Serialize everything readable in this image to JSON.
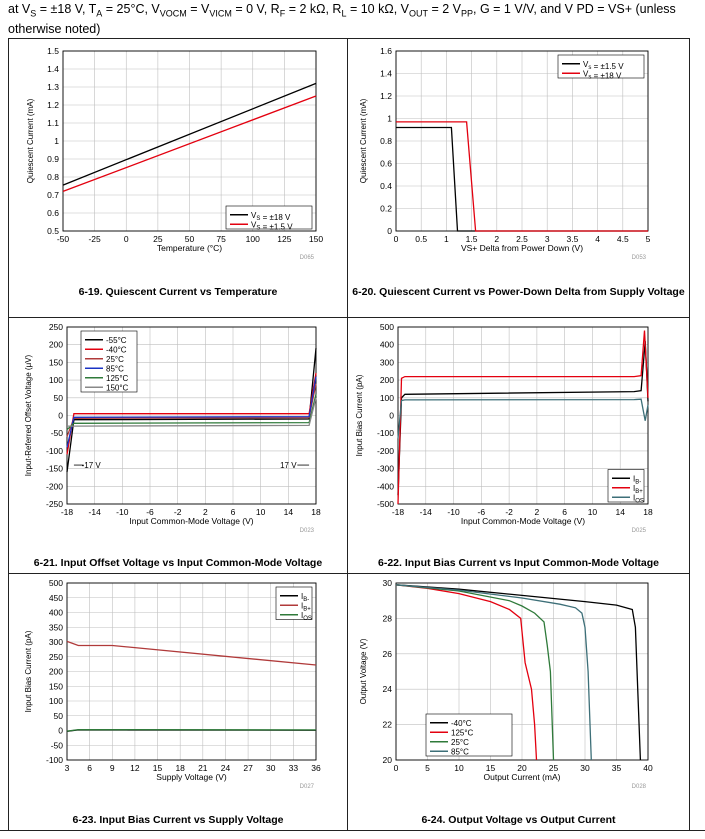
{
  "conditions": {
    "line1": "at V_S = ±18 V, T_A = 25°C, V_VOCM = V_VICM = 0 V, R_F = 2 kΩ, R_L = 10 kΩ, V_OUT = 2 V_PP, G = 1 V/V, and V PD = VS+ (unless",
    "line2": "otherwise noted)"
  },
  "colors": {
    "black": "#000000",
    "red": "#e3000f",
    "blue": "#1a33c4",
    "green": "#2f7a3a",
    "teal": "#3d6f78",
    "grid": "#bfbfbf"
  },
  "chart_data": [
    {
      "id": "fig19",
      "type": "line",
      "caption": "6-19. Quiescent Current vs Temperature",
      "code": "D065",
      "xlabel": "Temperature (°C)",
      "ylabel": "Quiescent Current (mA)",
      "xlim": [
        -50,
        150
      ],
      "ylim": [
        0.5,
        1.5
      ],
      "xticks": [
        "-50",
        "-25",
        "0",
        "25",
        "50",
        "75",
        "100",
        "125",
        "150"
      ],
      "yticks": [
        "0.5",
        "0.6",
        "0.7",
        "0.8",
        "0.9",
        "1",
        "1.1",
        "1.2",
        "1.3",
        "1.4",
        "1.5"
      ],
      "legend": "bottom-right",
      "series": [
        {
          "name": "V_S = ±18 V",
          "color": "#000000",
          "x": [
            -50,
            150
          ],
          "y": [
            0.755,
            1.32
          ]
        },
        {
          "name": "V_S = ±1.5 V",
          "color": "#e3000f",
          "x": [
            -50,
            150
          ],
          "y": [
            0.72,
            1.25
          ]
        }
      ]
    },
    {
      "id": "fig20",
      "type": "line",
      "caption": "6-20. Quiescent Current vs Power-Down Delta from Supply Voltage",
      "code": "D053",
      "xlabel": "VS+ Delta from Power Down (V)",
      "ylabel": "Quiescent Current (mA)",
      "xlim": [
        0,
        5
      ],
      "ylim": [
        0,
        1.6
      ],
      "xticks": [
        "0",
        "0.5",
        "1",
        "1.5",
        "2",
        "2.5",
        "3",
        "3.5",
        "4",
        "4.5",
        "5"
      ],
      "yticks": [
        "0",
        "0.2",
        "0.4",
        "0.6",
        "0.8",
        "1",
        "1.2",
        "1.4",
        "1.6"
      ],
      "legend": "top-right",
      "series": [
        {
          "name": "V_s = ±1.5 V",
          "color": "#000000",
          "x": [
            0,
            1.1,
            1.22,
            5
          ],
          "y": [
            0.92,
            0.92,
            0.0,
            0.0
          ]
        },
        {
          "name": "V_s = ±18 V",
          "color": "#e3000f",
          "x": [
            0,
            1.4,
            1.58,
            5
          ],
          "y": [
            0.97,
            0.97,
            0.0,
            0.0
          ]
        }
      ]
    },
    {
      "id": "fig21",
      "type": "line",
      "caption": "6-21. Input Offset Voltage vs Input Common-Mode Voltage",
      "code": "D023",
      "xlabel": "Input Common-Mode Voltage (V)",
      "ylabel": "Input-Referred Offset Voltage (μV)",
      "xlim": [
        -18,
        18
      ],
      "ylim": [
        -250,
        250
      ],
      "xticks": [
        "-18",
        "-14",
        "-10",
        "-6",
        "-2",
        "2",
        "6",
        "10",
        "14",
        "18"
      ],
      "yticks": [
        "-250",
        "-200",
        "-150",
        "-100",
        "-50",
        "0",
        "50",
        "100",
        "150",
        "200",
        "250"
      ],
      "legend": "top-left",
      "annotations": [
        "-17 V",
        "17 V"
      ],
      "series": [
        {
          "name": "-55°C",
          "color": "#000000",
          "x": [
            -18,
            -17,
            17,
            18
          ],
          "y": [
            -160,
            -12,
            -10,
            190
          ]
        },
        {
          "name": "-40°C",
          "color": "#e3000f",
          "x": [
            -18,
            -17,
            17,
            18
          ],
          "y": [
            -110,
            5,
            5,
            120
          ]
        },
        {
          "name": "25°C",
          "color": "#b03a3a",
          "x": [
            -18,
            -17,
            17,
            18
          ],
          "y": [
            -60,
            -8,
            -6,
            90
          ]
        },
        {
          "name": "85°C",
          "color": "#1a33c4",
          "x": [
            -18,
            -17,
            17,
            18
          ],
          "y": [
            -90,
            -5,
            -3,
            110
          ]
        },
        {
          "name": "125°C",
          "color": "#2f7a3a",
          "x": [
            -18,
            -17,
            17,
            18
          ],
          "y": [
            -40,
            -22,
            -20,
            60
          ]
        },
        {
          "name": "150°C",
          "color": "#888888",
          "x": [
            -18,
            -17,
            17,
            18
          ],
          "y": [
            -30,
            -30,
            -28,
            50
          ]
        }
      ]
    },
    {
      "id": "fig22",
      "type": "line",
      "caption": "6-22. Input Bias Current vs Input Common-Mode Voltage",
      "code": "D025",
      "xlabel": "Input Common-Mode Voltage (V)",
      "ylabel": "Input Bias Current (pA)",
      "xlim": [
        -18,
        18
      ],
      "ylim": [
        -500,
        500
      ],
      "xticks": [
        "-18",
        "-14",
        "-10",
        "-6",
        "-2",
        "2",
        "6",
        "10",
        "14",
        "18"
      ],
      "yticks": [
        "-500",
        "-400",
        "-300",
        "-200",
        "-100",
        "0",
        "100",
        "200",
        "300",
        "400",
        "500"
      ],
      "legend": "bottom-right",
      "series": [
        {
          "name": "I_B-",
          "color": "#000000",
          "x": [
            -18,
            -17.5,
            -17,
            16,
            17,
            17.6,
            18
          ],
          "y": [
            -450,
            100,
            120,
            135,
            140,
            420,
            80
          ]
        },
        {
          "name": "I_B+",
          "color": "#e3000f",
          "x": [
            -18,
            -17.5,
            -17,
            16,
            17,
            17.5,
            18
          ],
          "y": [
            -500,
            210,
            220,
            220,
            225,
            480,
            100
          ]
        },
        {
          "name": "I_OS",
          "color": "#3d6f78",
          "x": [
            -18,
            -17.5,
            -17,
            16,
            17,
            17.6,
            18
          ],
          "y": [
            -130,
            85,
            88,
            90,
            92,
            -30,
            60
          ]
        }
      ]
    },
    {
      "id": "fig23",
      "type": "line",
      "caption": "6-23. Input Bias Current vs Supply Voltage",
      "code": "D027",
      "xlabel": "Supply Voltage (V)",
      "ylabel": "Input Bias Current (pA)",
      "xlim": [
        3,
        36
      ],
      "ylim": [
        -100,
        500
      ],
      "xticks": [
        "3",
        "6",
        "9",
        "12",
        "15",
        "18",
        "21",
        "24",
        "27",
        "30",
        "33",
        "36"
      ],
      "yticks": [
        "-100",
        "-50",
        "0",
        "50",
        "100",
        "150",
        "200",
        "250",
        "300",
        "350",
        "400",
        "450",
        "500"
      ],
      "legend": "top-right",
      "series": [
        {
          "name": "I_B-",
          "color": "#000000",
          "x": [
            3,
            4.5,
            36
          ],
          "y": [
            -3,
            2,
            1
          ]
        },
        {
          "name": "I_B+",
          "color": "#b03a3a",
          "x": [
            3,
            4.5,
            9,
            36
          ],
          "y": [
            302,
            288,
            288,
            222
          ]
        },
        {
          "name": "I_OS",
          "color": "#2f7a3a",
          "x": [
            3,
            4.5,
            36
          ],
          "y": [
            -2,
            3,
            2
          ]
        }
      ]
    },
    {
      "id": "fig24",
      "type": "line",
      "caption": "6-24. Output Voltage vs Output Current",
      "code": "D028",
      "xlabel": "Output Current (mA)",
      "ylabel": "Output Voltage (V)",
      "xlim": [
        0,
        40
      ],
      "ylim": [
        20,
        30
      ],
      "xticks": [
        "0",
        "5",
        "10",
        "15",
        "20",
        "25",
        "30",
        "35",
        "40"
      ],
      "yticks": [
        "20",
        "22",
        "24",
        "26",
        "28",
        "30"
      ],
      "legend": "bottom-left",
      "series": [
        {
          "name": "-40°C",
          "color": "#000000",
          "x": [
            0,
            10,
            20,
            30,
            35,
            37.5,
            38,
            38.8
          ],
          "y": [
            29.9,
            29.65,
            29.3,
            28.95,
            28.75,
            28.5,
            27.5,
            20
          ]
        },
        {
          "name": "125°C",
          "color": "#e3000f",
          "x": [
            0,
            5,
            10,
            15,
            18,
            19.8,
            20.5,
            21.5,
            22,
            22.3
          ],
          "y": [
            29.9,
            29.7,
            29.4,
            28.95,
            28.5,
            28,
            25.5,
            24,
            22,
            20
          ]
        },
        {
          "name": "25°C",
          "color": "#2f7a3a",
          "x": [
            0,
            10,
            18,
            20,
            22,
            23.5,
            24,
            24.5,
            25
          ],
          "y": [
            29.9,
            29.55,
            29.0,
            28.7,
            28.3,
            27.8,
            26.5,
            25,
            20
          ]
        },
        {
          "name": "85°C",
          "color": "#3d6f78",
          "x": [
            0,
            10,
            20,
            26,
            28.5,
            29.5,
            30,
            30.5,
            31
          ],
          "y": [
            29.9,
            29.6,
            29.15,
            28.8,
            28.6,
            28.3,
            27.5,
            25,
            20
          ]
        }
      ]
    }
  ]
}
